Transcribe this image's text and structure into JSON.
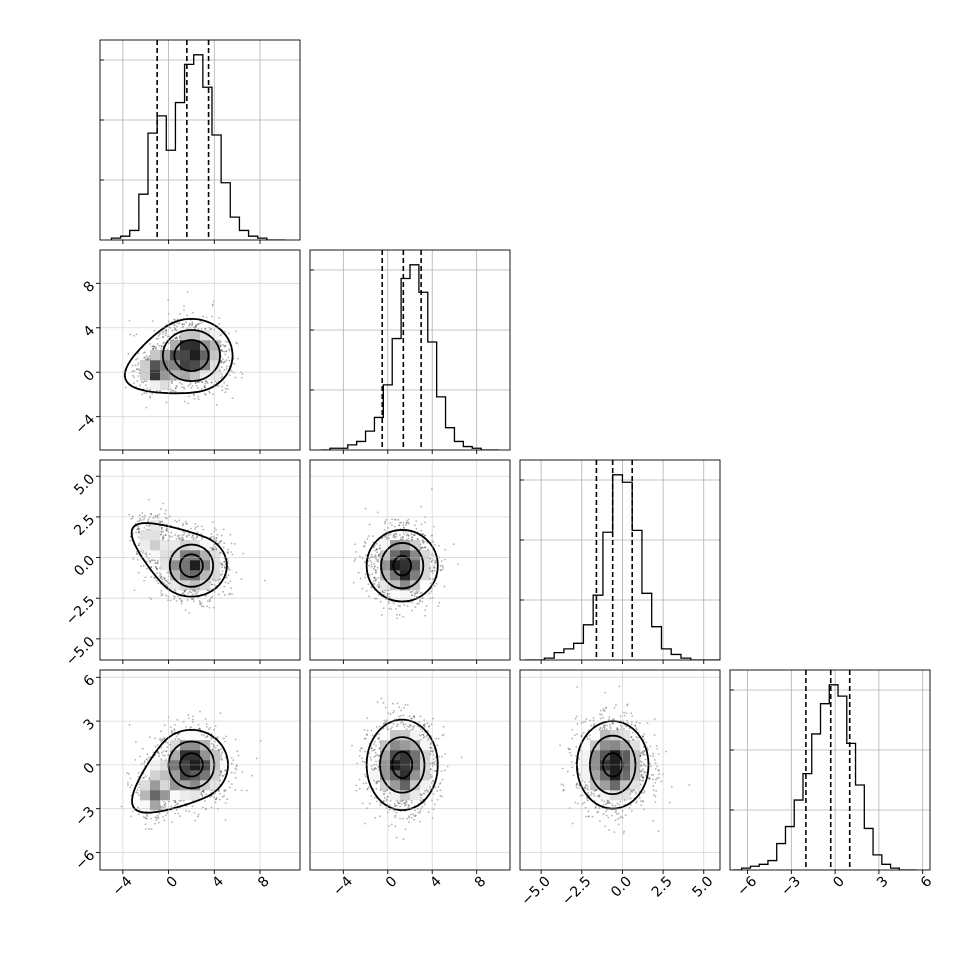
{
  "chart_data": {
    "type": "corner",
    "grid_size": 4,
    "grid": true,
    "colors": {
      "line": "#000000",
      "scatter": "#000000",
      "grid": "#b0b0b0"
    },
    "params": [
      {
        "ticks": [
          -4,
          0,
          4,
          8
        ],
        "tick_labels": [
          "−4",
          "0",
          "4",
          "8"
        ],
        "range": [
          -6,
          11.5
        ]
      },
      {
        "ticks": [
          -4,
          0,
          4,
          8
        ],
        "tick_labels": [
          "−4",
          "0",
          "4",
          "8"
        ],
        "range": [
          -7,
          11
        ]
      },
      {
        "ticks": [
          -5,
          -2.5,
          0,
          2.5,
          5
        ],
        "tick_labels": [
          "−5.0",
          "−2.5",
          "0.0",
          "2.5",
          "5.0"
        ],
        "range": [
          -6.3,
          6
        ]
      },
      {
        "ticks": [
          -6,
          -3,
          0,
          3,
          6
        ],
        "tick_labels": [
          "−6",
          "−3",
          "0",
          "3",
          "6"
        ],
        "range": [
          -7.2,
          6.5
        ]
      }
    ],
    "histograms": [
      {
        "edges": [
          -5.0,
          -4.2,
          -3.4,
          -2.6,
          -1.8,
          -1.0,
          -0.2,
          0.6,
          1.4,
          2.2,
          3.0,
          3.8,
          4.6,
          5.4,
          6.2,
          7.0,
          7.8,
          8.6,
          9.4,
          10.2
        ],
        "counts": [
          1,
          2,
          5,
          24,
          56,
          65,
          47,
          72,
          92,
          97,
          80,
          55,
          30,
          12,
          5,
          2,
          1,
          0,
          0
        ],
        "quantiles": [
          -1.0,
          1.6,
          3.5
        ]
      },
      {
        "edges": [
          -6.0,
          -5.2,
          -4.4,
          -3.6,
          -2.8,
          -2.0,
          -1.2,
          -0.4,
          0.4,
          1.2,
          2.0,
          2.8,
          3.6,
          4.4,
          5.2,
          6.0,
          6.8,
          7.6,
          8.4,
          9.2,
          10.0
        ],
        "counts": [
          0,
          1,
          1,
          3,
          5,
          11,
          19,
          38,
          65,
          100,
          108,
          92,
          63,
          31,
          13,
          5,
          2,
          1,
          0,
          0
        ],
        "quantiles": [
          -0.5,
          1.4,
          3.0
        ]
      },
      {
        "edges": [
          -6.0,
          -5.4,
          -4.8,
          -4.2,
          -3.6,
          -3.0,
          -2.4,
          -1.8,
          -1.2,
          -0.6,
          0.0,
          0.6,
          1.2,
          1.8,
          2.4,
          3.0,
          3.6,
          4.2,
          4.8,
          5.4,
          6.0
        ],
        "counts": [
          0,
          0,
          1,
          4,
          6,
          9,
          19,
          35,
          69,
          100,
          96,
          70,
          36,
          18,
          6,
          3,
          1,
          0,
          0,
          0
        ],
        "quantiles": [
          -1.6,
          -0.6,
          0.6
        ]
      },
      {
        "edges": [
          -7.0,
          -6.4,
          -5.8,
          -5.2,
          -4.6,
          -4.0,
          -3.4,
          -2.8,
          -2.2,
          -1.6,
          -1.0,
          -0.4,
          0.2,
          0.8,
          1.4,
          2.0,
          2.6,
          3.2,
          3.8,
          4.4,
          5.0,
          5.6
        ],
        "counts": [
          0,
          1,
          2,
          3,
          5,
          14,
          23,
          37,
          51,
          72,
          88,
          98,
          92,
          67,
          45,
          22,
          8,
          3,
          1,
          0,
          0
        ],
        "quantiles": [
          -2.0,
          -0.3,
          1.0
        ]
      }
    ],
    "pairs": [
      {
        "row": 1,
        "col": 0,
        "center": [
          2.0,
          1.5
        ],
        "spread": [
          1.6,
          1.5
        ],
        "blob": [
          -1.2,
          0.2
        ],
        "levels": [
          [
            1.5,
            1.4
          ],
          [
            2.5,
            2.3
          ],
          [
            3.6,
            3.3
          ]
        ]
      },
      {
        "row": 2,
        "col": 0,
        "center": [
          2.0,
          -0.5
        ],
        "spread": [
          1.5,
          1.0
        ],
        "blob": [
          -1.4,
          1.2
        ],
        "levels": [
          [
            1.0,
            0.7
          ],
          [
            1.9,
            1.3
          ],
          [
            3.1,
            1.9
          ]
        ]
      },
      {
        "row": 2,
        "col": 1,
        "center": [
          1.3,
          -0.5
        ],
        "spread": [
          1.4,
          1.1
        ],
        "blob": null,
        "levels": [
          [
            0.8,
            0.6
          ],
          [
            1.9,
            1.4
          ],
          [
            3.2,
            2.2
          ]
        ]
      },
      {
        "row": 3,
        "col": 0,
        "center": [
          2.0,
          0.0
        ],
        "spread": [
          1.6,
          1.3
        ],
        "blob": [
          -1.3,
          -2.0
        ],
        "levels": [
          [
            1.0,
            0.8
          ],
          [
            2.0,
            1.6
          ],
          [
            3.2,
            2.4
          ]
        ]
      },
      {
        "row": 3,
        "col": 1,
        "center": [
          1.3,
          0.0
        ],
        "spread": [
          1.5,
          1.5
        ],
        "blob": null,
        "levels": [
          [
            0.9,
            0.9
          ],
          [
            2.0,
            1.9
          ],
          [
            3.2,
            3.1
          ]
        ]
      },
      {
        "row": 3,
        "col": 2,
        "center": [
          -0.6,
          0.0
        ],
        "spread": [
          1.1,
          1.5
        ],
        "blob": null,
        "levels": [
          [
            0.6,
            0.8
          ],
          [
            1.4,
            2.0
          ],
          [
            2.2,
            3.0
          ]
        ]
      }
    ]
  }
}
